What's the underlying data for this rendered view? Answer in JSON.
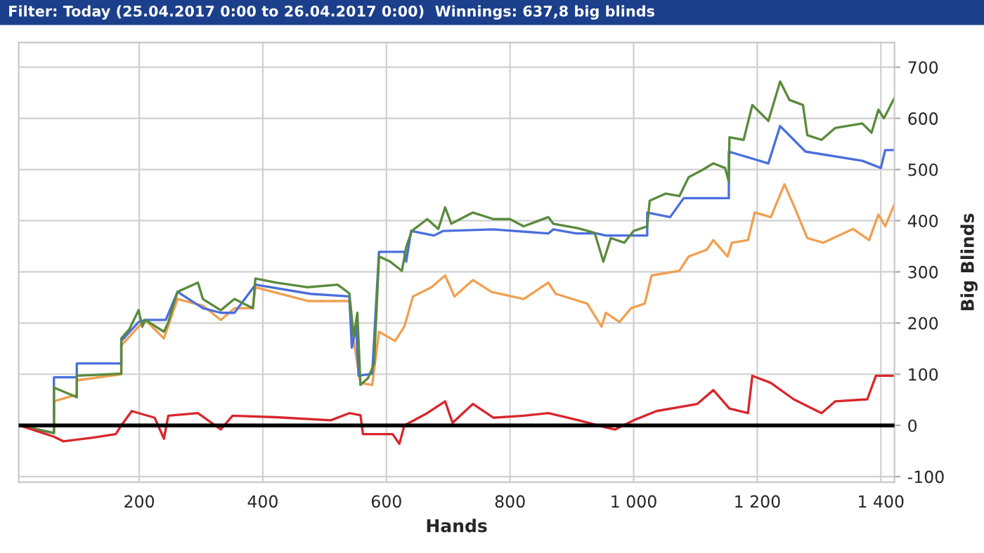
{
  "chart_data": {
    "type": "line",
    "title": "Filter: Today (25.04.2017 0:00 to 26.04.2017 0:00)  Winnings: 637,8 big blinds",
    "xlabel": "Hands",
    "ylabel": "Big Blinds",
    "xlim": [
      5,
      1422
    ],
    "ylim": [
      -111,
      748
    ],
    "xticks": [
      200,
      400,
      600,
      800,
      {
        "value": 1000,
        "label": "1 000"
      },
      {
        "value": 1200,
        "label": "1 200"
      },
      {
        "value": 1400,
        "label": "1 400"
      }
    ],
    "yticks": [
      -100,
      0,
      100,
      200,
      300,
      400,
      500,
      600,
      700
    ],
    "grid": true,
    "legend": false,
    "ref_lines": [
      {
        "axis": "y",
        "value": 0,
        "label": null,
        "color": "#000000"
      }
    ],
    "series": [
      {
        "color": "#f0a050",
        "x": [
          6,
          62,
          62,
          99,
          99,
          171,
          171,
          199,
          210,
          240,
          262,
          303,
          332,
          354,
          384,
          388,
          473,
          540,
          547,
          558,
          577,
          588,
          614,
          629,
          643,
          673,
          695,
          710,
          740,
          770,
          822,
          862,
          874,
          925,
          948,
          955,
          977,
          996,
          1018,
          1029,
          1074,
          1089,
          1118,
          1129,
          1152,
          1159,
          1185,
          1196,
          1222,
          1244,
          1259,
          1281,
          1307,
          1355,
          1381,
          1396,
          1407,
          1422
        ],
        "values": [
          0,
          -15,
          47,
          60,
          88,
          100,
          156,
          193,
          206,
          170,
          247,
          234,
          206,
          229,
          229,
          270,
          243,
          243,
          165,
          83,
          79,
          183,
          165,
          193,
          252,
          270,
          293,
          252,
          284,
          261,
          247,
          279,
          257,
          238,
          193,
          220,
          202,
          229,
          238,
          293,
          302,
          330,
          343,
          362,
          330,
          357,
          362,
          416,
          407,
          471,
          430,
          366,
          357,
          384,
          362,
          412,
          389,
          432
        ]
      },
      {
        "color": "#4a6fdc",
        "x": [
          6,
          62,
          62,
          99,
          99,
          171,
          171,
          199,
          210,
          243,
          262,
          303,
          332,
          354,
          388,
          477,
          540,
          544,
          551,
          555,
          577,
          588,
          629,
          632,
          640,
          677,
          692,
          773,
          862,
          870,
          907,
          940,
          955,
          1022,
          1022,
          1059,
          1081,
          1154,
          1154,
          1218,
          1237,
          1278,
          1370,
          1400,
          1407,
          1422
        ],
        "values": [
          0,
          -15,
          94,
          94,
          121,
          121,
          165,
          202,
          206,
          206,
          261,
          229,
          220,
          220,
          275,
          257,
          252,
          152,
          193,
          97,
          101,
          339,
          339,
          320,
          380,
          371,
          380,
          383,
          375,
          383,
          375,
          375,
          371,
          371,
          416,
          407,
          444,
          444,
          535,
          512,
          585,
          535,
          517,
          503,
          538,
          538
        ]
      },
      {
        "color": "#5a8a3c",
        "x": [
          6,
          62,
          62,
          99,
          99,
          171,
          171,
          184,
          199,
          205,
          210,
          240,
          247,
          262,
          295,
          303,
          332,
          354,
          384,
          388,
          421,
          473,
          521,
          540,
          547,
          553,
          558,
          570,
          580,
          588,
          606,
          625,
          632,
          641,
          666,
          684,
          695,
          705,
          740,
          773,
          800,
          822,
          862,
          870,
          911,
          937,
          944,
          951,
          963,
          985,
          1000,
          1022,
          1026,
          1052,
          1074,
          1089,
          1111,
          1129,
          1148,
          1154,
          1155,
          1178,
          1192,
          1218,
          1237,
          1252,
          1274,
          1281,
          1304,
          1326,
          1370,
          1385,
          1396,
          1405,
          1422
        ],
        "values": [
          0,
          -15,
          74,
          55,
          97,
          101,
          170,
          188,
          225,
          193,
          206,
          183,
          201,
          261,
          279,
          247,
          225,
          247,
          229,
          287,
          279,
          270,
          275,
          258,
          174,
          220,
          79,
          92,
          120,
          330,
          320,
          302,
          348,
          380,
          403,
          384,
          426,
          394,
          416,
          403,
          403,
          389,
          407,
          394,
          385,
          376,
          348,
          320,
          366,
          357,
          380,
          389,
          439,
          453,
          448,
          485,
          499,
          512,
          503,
          476,
          563,
          558,
          626,
          595,
          672,
          636,
          626,
          567,
          558,
          581,
          590,
          572,
          617,
          600,
          640
        ]
      },
      {
        "color": "#d9262c",
        "x": [
          6,
          62,
          77,
          125,
          162,
          171,
          188,
          225,
          240,
          247,
          295,
          332,
          351,
          421,
          510,
          540,
          558,
          562,
          610,
          621,
          629,
          666,
          695,
          707,
          740,
          773,
          822,
          862,
          911,
          955,
          970,
          1000,
          1037,
          1103,
          1129,
          1155,
          1185,
          1192,
          1222,
          1259,
          1304,
          1326,
          1378,
          1392,
          1422
        ],
        "values": [
          0,
          -22,
          -31,
          -24,
          -17,
          0,
          28,
          15,
          -26,
          19,
          24,
          -8,
          19,
          16,
          10,
          24,
          20,
          -17,
          -17,
          -36,
          0,
          24,
          47,
          5,
          42,
          15,
          19,
          24,
          10,
          -4,
          -8,
          10,
          28,
          42,
          69,
          33,
          24,
          97,
          83,
          51,
          24,
          47,
          51,
          97,
          97
        ]
      }
    ]
  }
}
